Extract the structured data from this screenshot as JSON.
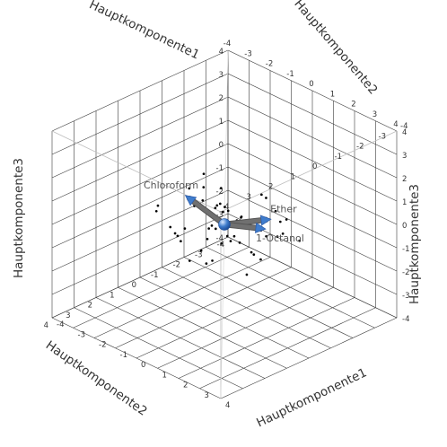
{
  "chart_data": {
    "type": "scatter",
    "subtype": "3d-biplot",
    "axes": {
      "x": {
        "label": "Hauptkomponente1",
        "ticks": [
          -4,
          -3,
          -2,
          -1,
          0,
          1,
          2,
          3,
          4
        ]
      },
      "y": {
        "label": "Hauptkomponente2",
        "ticks": [
          -4,
          -3,
          -2,
          -1,
          0,
          1,
          2,
          3,
          4
        ]
      },
      "z": {
        "label": "Hauptkomponente3",
        "ticks": [
          -4,
          -3,
          -2,
          -1,
          0,
          1,
          2,
          3,
          4
        ]
      }
    },
    "range": [
      -4,
      4
    ],
    "grid": true,
    "point_color": "#000000",
    "vector_color": "#707070",
    "accent_color": "#3f7ccc",
    "vectors": [
      {
        "name": "Chloroform",
        "xyz": [
          -0.6,
          1.2,
          1.5
        ]
      },
      {
        "name": "Ether",
        "xyz": [
          2.0,
          -0.2,
          1.0
        ]
      },
      {
        "name": "1-Octanol",
        "xyz": [
          0.6,
          -1.3,
          -0.5
        ]
      }
    ],
    "points": [
      [
        -2.4,
        -0.7,
        0.2
      ],
      [
        -2.1,
        -1.6,
        -0.9
      ],
      [
        -1.8,
        0.4,
        -1.1
      ],
      [
        -1.6,
        -1.2,
        -0.4
      ],
      [
        -1.4,
        0.9,
        -0.6
      ],
      [
        -1.3,
        -0.3,
        0.9
      ],
      [
        -1.1,
        0.0,
        -1.6
      ],
      [
        -1.0,
        1.5,
        0.1
      ],
      [
        -0.9,
        -0.8,
        -0.2
      ],
      [
        -0.8,
        0.6,
        0.7
      ],
      [
        -0.7,
        -1.9,
        -1.2
      ],
      [
        -0.6,
        0.2,
        -0.8
      ],
      [
        -0.5,
        1.1,
        -1.3
      ],
      [
        -0.4,
        -0.4,
        0.4
      ],
      [
        -0.3,
        0.7,
        1.2
      ],
      [
        -0.2,
        -1.1,
        -0.6
      ],
      [
        -0.1,
        0.3,
        -0.1
      ],
      [
        0.0,
        1.8,
        0.6
      ],
      [
        0.1,
        -0.6,
        -1.0
      ],
      [
        0.2,
        0.9,
        0.3
      ],
      [
        0.3,
        -1.4,
        0.8
      ],
      [
        0.4,
        0.1,
        -0.5
      ],
      [
        0.5,
        1.3,
        -0.9
      ],
      [
        0.6,
        -0.2,
        0.5
      ],
      [
        0.7,
        0.5,
        1.1
      ],
      [
        0.8,
        -0.9,
        -0.3
      ],
      [
        0.9,
        1.0,
        0.0
      ],
      [
        1.0,
        -1.7,
        -0.7
      ],
      [
        1.1,
        0.3,
        0.9
      ],
      [
        1.2,
        -0.5,
        -1.2
      ],
      [
        1.3,
        0.8,
        0.4
      ],
      [
        1.4,
        -1.2,
        0.2
      ],
      [
        1.5,
        0.1,
        -0.6
      ],
      [
        1.6,
        1.4,
        0.8
      ],
      [
        1.7,
        -0.7,
        1.0
      ],
      [
        1.8,
        0.5,
        -0.2
      ],
      [
        1.9,
        -1.0,
        0.6
      ],
      [
        2.0,
        0.9,
        -0.9
      ],
      [
        2.2,
        -0.3,
        0.3
      ],
      [
        2.4,
        0.4,
        0.7
      ],
      [
        -1.9,
        1.2,
        0.5
      ],
      [
        -1.5,
        -0.5,
        1.3
      ],
      [
        -0.7,
        -0.1,
        -0.4
      ],
      [
        0.3,
        -0.3,
        0.1
      ],
      [
        0.8,
        0.2,
        0.6
      ],
      [
        1.2,
        1.7,
        -0.3
      ],
      [
        -0.4,
        1.6,
        -0.2
      ],
      [
        0.1,
        -1.8,
        0.4
      ],
      [
        -1.2,
        -1.0,
        0.6
      ],
      [
        2.1,
        -1.4,
        -0.4
      ],
      [
        -2.6,
        0.6,
        -0.3
      ],
      [
        -0.2,
        0.0,
        0.8
      ]
    ]
  }
}
